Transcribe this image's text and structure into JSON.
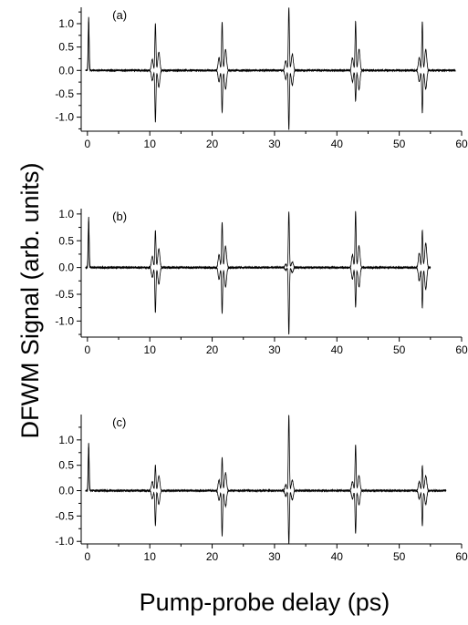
{
  "figure": {
    "ylabel": "DFWM Signal (arb. units)",
    "xlabel": "Pump-probe delay (ps)"
  },
  "chart_data": [
    {
      "type": "line",
      "panel_label": "(a)",
      "xlim": [
        -1,
        60
      ],
      "ylim": [
        -1.3,
        1.35
      ],
      "xticks": [
        0,
        10,
        20,
        30,
        40,
        50,
        60
      ],
      "yticks": [
        -1.0,
        -0.5,
        0.0,
        0.5,
        1.0
      ],
      "ytick_labels": [
        "-1.0",
        "-0.5",
        "0.0",
        "0.5",
        "1.0"
      ],
      "grid": false,
      "trace_end": 59,
      "revivals": [
        {
          "t": 0.2,
          "max": 1.15,
          "min": 0.0,
          "side": 0.0
        },
        {
          "t": 10.9,
          "max": 1.0,
          "min": -1.1,
          "side": 0.4
        },
        {
          "t": 21.6,
          "max": 1.05,
          "min": -0.9,
          "side": 0.45
        },
        {
          "t": 32.3,
          "max": 1.35,
          "min": -1.27,
          "side": 0.35
        },
        {
          "t": 43.0,
          "max": 1.05,
          "min": -0.65,
          "side": 0.45
        },
        {
          "t": 53.7,
          "max": 1.05,
          "min": -0.9,
          "side": 0.45
        }
      ]
    },
    {
      "type": "line",
      "panel_label": "(b)",
      "xlim": [
        -1,
        60
      ],
      "ylim": [
        -1.3,
        1.1
      ],
      "xticks": [
        0,
        10,
        20,
        30,
        40,
        50,
        60
      ],
      "yticks": [
        -1.0,
        -0.5,
        0.0,
        0.5,
        1.0
      ],
      "ytick_labels": [
        "-1.0",
        "-0.5",
        "0.0",
        "0.5",
        "1.0"
      ],
      "grid": false,
      "trace_end": 55,
      "revivals": [
        {
          "t": 0.2,
          "max": 0.95,
          "min": 0.0,
          "side": 0.0
        },
        {
          "t": 10.9,
          "max": 0.7,
          "min": -0.85,
          "side": 0.35
        },
        {
          "t": 21.6,
          "max": 0.85,
          "min": -0.85,
          "side": 0.4
        },
        {
          "t": 32.3,
          "max": 1.05,
          "min": -1.25,
          "side": 0.1
        },
        {
          "t": 43.0,
          "max": 1.05,
          "min": -0.75,
          "side": 0.4
        },
        {
          "t": 53.7,
          "max": 0.7,
          "min": -0.75,
          "side": 0.45
        }
      ]
    },
    {
      "type": "line",
      "panel_label": "(c)",
      "xlim": [
        -1,
        60
      ],
      "ylim": [
        -1.05,
        1.5
      ],
      "xticks": [
        0,
        10,
        20,
        30,
        40,
        50,
        60
      ],
      "yticks": [
        -1.0,
        -0.5,
        0.0,
        0.5,
        1.0
      ],
      "ytick_labels": [
        "-1.0",
        "-0.5",
        "0.0",
        "0.5",
        "1.0"
      ],
      "grid": false,
      "trace_end": 57.5,
      "revivals": [
        {
          "t": 0.2,
          "max": 0.95,
          "min": 0.0,
          "side": 0.0
        },
        {
          "t": 10.9,
          "max": 0.5,
          "min": -0.7,
          "side": 0.3
        },
        {
          "t": 21.6,
          "max": 0.65,
          "min": -0.9,
          "side": 0.35
        },
        {
          "t": 32.3,
          "max": 1.5,
          "min": -1.05,
          "side": 0.2
        },
        {
          "t": 43.0,
          "max": 0.9,
          "min": -0.85,
          "side": 0.3
        },
        {
          "t": 53.7,
          "max": 0.5,
          "min": -0.7,
          "side": 0.3
        }
      ]
    }
  ]
}
